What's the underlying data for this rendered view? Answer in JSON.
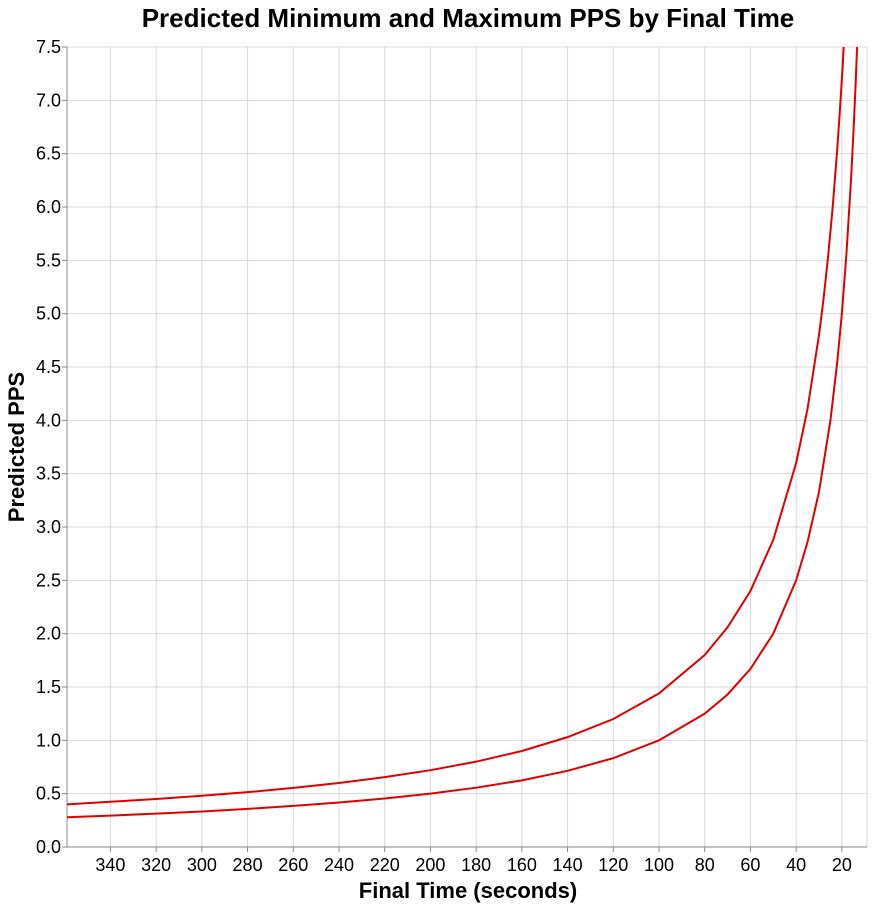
{
  "chart_data": {
    "type": "line",
    "title": "Predicted Minimum and Maximum PPS by Final Time",
    "xlabel": "Final Time (seconds)",
    "ylabel": "Predicted PPS",
    "x_reversed": true,
    "xlim": [
      359,
      9
    ],
    "ylim": [
      0,
      7.5
    ],
    "x_ticks": [
      340,
      320,
      300,
      280,
      260,
      240,
      220,
      200,
      180,
      160,
      140,
      120,
      100,
      80,
      60,
      40,
      20
    ],
    "y_ticks": [
      "0.0",
      "0.5",
      "1.0",
      "1.5",
      "2.0",
      "2.5",
      "3.0",
      "3.5",
      "4.0",
      "4.5",
      "5.0",
      "5.5",
      "6.0",
      "6.5",
      "7.0",
      "7.5"
    ],
    "grid": true,
    "line_color": "#e00000",
    "series": [
      {
        "x": [
          359,
          340,
          320,
          300,
          280,
          260,
          240,
          220,
          200,
          180,
          160,
          140,
          120,
          100,
          80,
          70,
          60,
          50,
          40,
          35,
          30,
          28,
          26,
          24,
          22,
          21,
          20,
          19.5,
          19.2
        ],
        "values": [
          0.4,
          0.424,
          0.45,
          0.48,
          0.514,
          0.554,
          0.6,
          0.655,
          0.72,
          0.8,
          0.9,
          1.03,
          1.2,
          1.44,
          1.8,
          2.06,
          2.4,
          2.88,
          3.6,
          4.11,
          4.8,
          5.14,
          5.54,
          6.0,
          6.55,
          6.86,
          7.2,
          7.38,
          7.5
        ]
      },
      {
        "x": [
          359,
          340,
          320,
          300,
          280,
          260,
          240,
          220,
          200,
          180,
          160,
          140,
          120,
          100,
          80,
          70,
          60,
          50,
          40,
          35,
          30,
          25,
          22,
          20,
          18,
          16,
          15,
          14,
          13.5,
          13.33
        ],
        "values": [
          0.279,
          0.294,
          0.313,
          0.333,
          0.357,
          0.385,
          0.417,
          0.455,
          0.5,
          0.556,
          0.625,
          0.714,
          0.833,
          1.0,
          1.25,
          1.43,
          1.67,
          2.0,
          2.5,
          2.86,
          3.33,
          4.0,
          4.55,
          5.0,
          5.56,
          6.25,
          6.67,
          7.14,
          7.41,
          7.5
        ]
      }
    ]
  }
}
